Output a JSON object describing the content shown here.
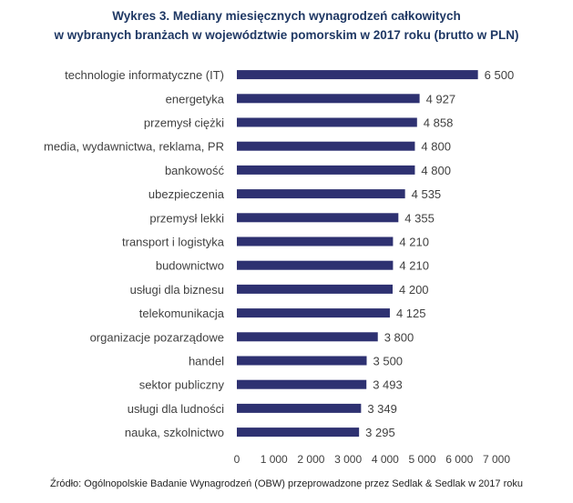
{
  "chart_data": {
    "type": "bar",
    "orientation": "horizontal",
    "title": "Wykres 3. Mediany miesięcznych wynagrodzeń całkowitych",
    "subtitle": "w wybranych branżach w województwie pomorskim w 2017 roku (brutto w PLN)",
    "categories": [
      "technologie informatyczne (IT)",
      "energetyka",
      "przemysł ciężki",
      "media, wydawnictwa, reklama, PR",
      "bankowość",
      "ubezpieczenia",
      "przemysł lekki",
      "transport i logistyka",
      "budownictwo",
      "usługi dla biznesu",
      "telekomunikacja",
      "organizacje pozarządowe",
      "handel",
      "sektor publiczny",
      "usługi dla ludności",
      "nauka, szkolnictwo"
    ],
    "values": [
      6500,
      4927,
      4858,
      4800,
      4800,
      4535,
      4355,
      4210,
      4210,
      4200,
      4125,
      3800,
      3500,
      3493,
      3349,
      3295
    ],
    "value_labels": [
      "6 500",
      "4 927",
      "4 858",
      "4 800",
      "4 800",
      "4 535",
      "4 355",
      "4 210",
      "4 210",
      "4 200",
      "4 125",
      "3 800",
      "3 500",
      "3 493",
      "3 349",
      "3 295"
    ],
    "xlim": [
      0,
      7000
    ],
    "xticks": [
      0,
      1000,
      2000,
      3000,
      4000,
      5000,
      6000,
      7000
    ],
    "xtick_labels": [
      "0",
      "1 000",
      "2 000",
      "3 000",
      "4 000",
      "5 000",
      "6 000",
      "7 000"
    ],
    "grid": false,
    "legend": "none",
    "bar_color": "#2e3171",
    "source": "Źródło: Ogólnopolskie Badanie Wynagrodzeń (OBW) przeprowadzone przez Sedlak & Sedlak w 2017 roku"
  }
}
